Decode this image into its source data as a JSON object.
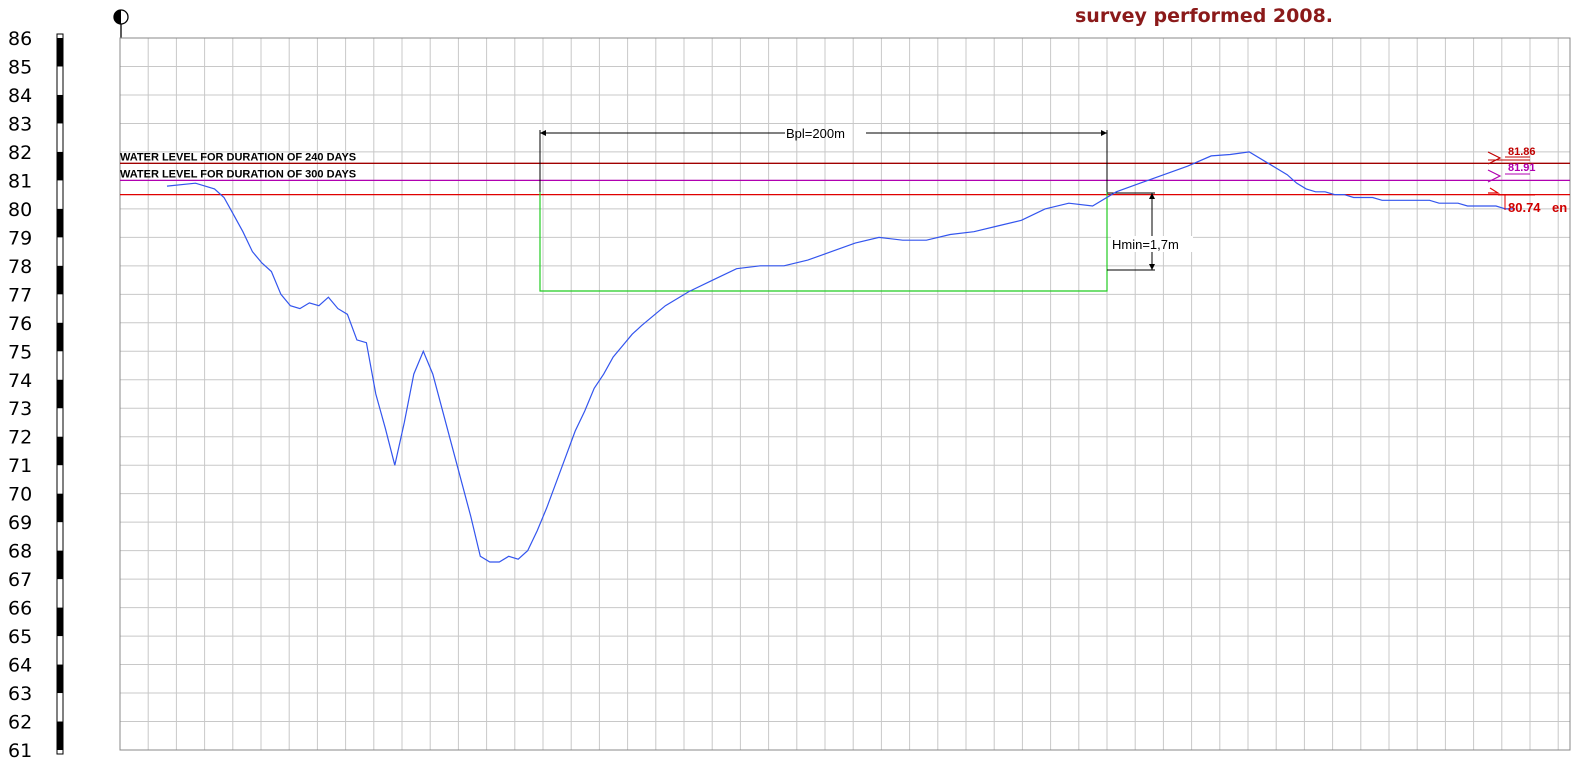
{
  "chart_data": {
    "type": "line",
    "title": "survey performed 2008.",
    "ylim": [
      61,
      86
    ],
    "y_ticks": [
      86,
      85,
      84,
      83,
      82,
      81,
      80,
      79,
      78,
      77,
      76,
      75,
      74,
      73,
      72,
      71,
      70,
      69,
      68,
      67,
      66,
      65,
      64,
      63,
      62,
      61
    ],
    "grid": true,
    "series": [
      {
        "x": [
          0,
          6,
          10,
          12,
          14,
          16,
          18,
          20,
          22,
          24,
          26,
          28,
          30,
          32,
          34,
          36,
          38,
          40,
          42,
          44,
          46,
          48,
          50,
          52,
          54,
          56,
          60,
          64,
          66,
          68,
          70,
          72,
          74,
          76,
          78,
          80,
          82,
          84,
          86,
          88,
          90,
          92,
          94,
          96,
          98,
          100,
          105,
          110,
          115,
          120,
          125,
          130,
          135,
          140,
          145,
          150,
          155,
          160,
          165,
          170,
          175,
          180,
          185,
          190,
          195,
          200,
          205,
          210,
          215,
          220,
          224,
          228,
          232,
          234,
          236,
          238,
          240,
          242,
          244,
          246,
          248,
          250,
          252,
          254,
          256,
          258,
          260,
          262,
          264,
          266,
          268,
          270,
          272,
          274,
          276,
          278,
          280,
          282,
          284
        ],
        "y": [
          80.8,
          80.9,
          80.7,
          80.4,
          79.8,
          79.2,
          78.5,
          78.1,
          77.8,
          77.0,
          76.6,
          76.5,
          76.7,
          76.6,
          76.9,
          76.5,
          76.3,
          75.4,
          75.3,
          73.5,
          72.3,
          71.0,
          72.5,
          74.2,
          75.0,
          74.2,
          71.7,
          69.2,
          67.8,
          67.6,
          67.6,
          67.8,
          67.7,
          68.0,
          68.7,
          69.5,
          70.4,
          71.3,
          72.2,
          72.9,
          73.7,
          74.2,
          74.8,
          75.2,
          75.6,
          75.9,
          76.6,
          77.1,
          77.5,
          77.9,
          78.0,
          78.0,
          78.2,
          78.5,
          78.8,
          79.0,
          78.9,
          78.9,
          79.1,
          79.2,
          79.4,
          79.6,
          80.0,
          80.2,
          80.1,
          80.6,
          80.9,
          81.2,
          81.5,
          81.86,
          81.91,
          82.0,
          81.6,
          81.4,
          81.2,
          80.9,
          80.7,
          80.6,
          80.6,
          80.5,
          80.5,
          80.4,
          80.4,
          80.4,
          80.3,
          80.3,
          80.3,
          80.3,
          80.3,
          80.3,
          80.2,
          80.2,
          80.2,
          80.1,
          80.1,
          80.1,
          80.1,
          80.0,
          80.0
        ],
        "color": "#3355ee"
      }
    ],
    "water_levels": [
      {
        "label": "WATER LEVEL FOR DURATION OF 240 DAYS",
        "value": 81.6,
        "color": "#a00000"
      },
      {
        "label": "WATER LEVEL FOR DURATION OF 300 DAYS",
        "value": 81.0,
        "color": "#b000b0"
      },
      {
        "label": "",
        "value": 80.5,
        "color": "#e00000"
      }
    ],
    "annotations": {
      "bpl": "Bpl=200m",
      "hmin": "Hmin=1,7m",
      "level_1": "81.86",
      "level_2": "81.91",
      "level_3": "80.74",
      "level_3_suffix": "en"
    }
  }
}
